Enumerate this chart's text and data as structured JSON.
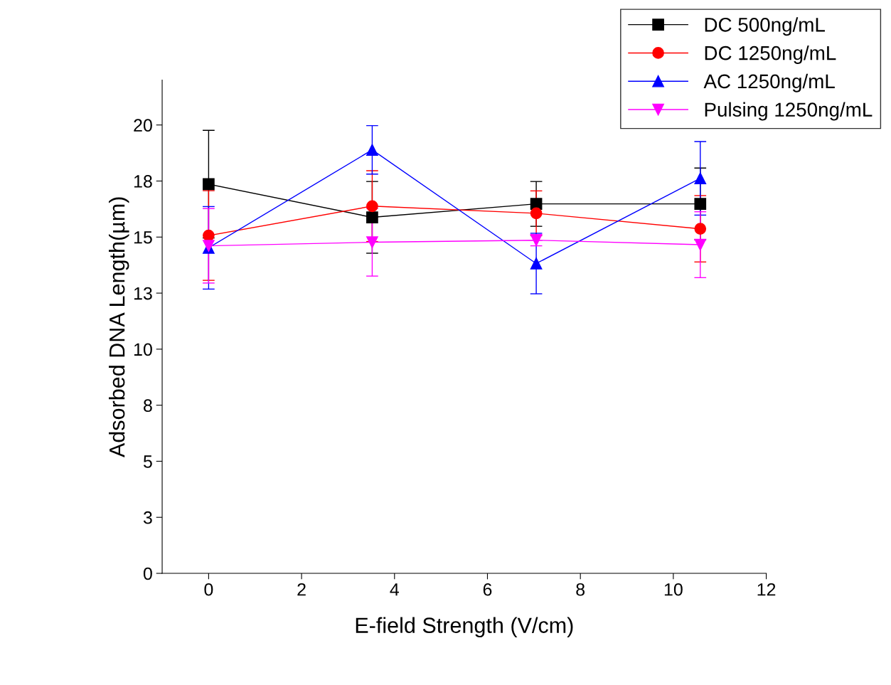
{
  "chart_data": {
    "type": "line",
    "xlabel": "E-field Strength (V/cm)",
    "ylabel": "Adsorbed DNA Length(µm)",
    "x": [
      0,
      3.52,
      7.05,
      10.58
    ],
    "series": [
      {
        "name": "DC 500ng/mL",
        "color": "#000000",
        "marker": "square",
        "values": [
          17.36,
          15.88,
          16.48,
          16.48
        ],
        "errors": [
          2.4,
          1.6,
          1.0,
          1.6
        ]
      },
      {
        "name": "DC 1250ng/mL",
        "color": "#ff0000",
        "marker": "circle",
        "values": [
          15.07,
          16.38,
          16.06,
          15.37
        ],
        "errors": [
          2.0,
          1.58,
          1.0,
          1.48
        ]
      },
      {
        "name": "AC 1250ng/mL",
        "color": "#0000ff",
        "marker": "triangle",
        "values": [
          14.52,
          18.89,
          13.82,
          17.62
        ],
        "errors": [
          1.84,
          1.08,
          1.35,
          1.64
        ]
      },
      {
        "name": "Pulsing 1250ng/mL",
        "color": "#ff00ff",
        "marker": "triangle_down",
        "values": [
          14.61,
          14.77,
          14.86,
          14.66
        ],
        "errors": [
          1.66,
          1.51,
          0.25,
          1.47
        ]
      }
    ],
    "xlim": [
      -1,
      12
    ],
    "xticks": [
      0,
      2,
      4,
      6,
      8,
      10,
      12
    ],
    "ylim": [
      0,
      22
    ],
    "yticks": [
      0,
      {
        "value": 2.5,
        "label": "3"
      },
      5,
      {
        "value": 7.5,
        "label": "8"
      },
      10,
      {
        "value": 12.5,
        "label": "13"
      },
      15,
      {
        "value": 17.5,
        "label": "18"
      },
      20
    ],
    "legend": "top right",
    "grid": false,
    "line_style": "solid"
  }
}
